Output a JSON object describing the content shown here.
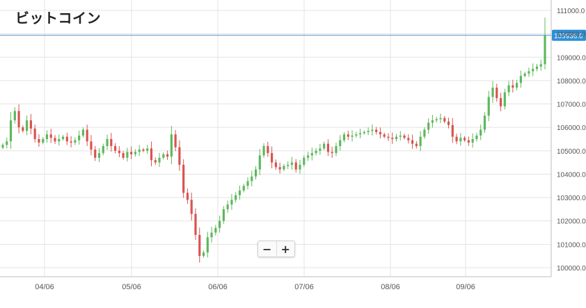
{
  "title": "ビットコイン",
  "zoom": {
    "minus": "−",
    "plus": "+"
  },
  "chart_data": {
    "type": "candlestick",
    "title": "ビットコイン",
    "x_ticks": [
      "04/06",
      "05/06",
      "06/06",
      "07/06",
      "08/06",
      "09/06"
    ],
    "y_ticks": [
      "100000.0",
      "101000.0",
      "102000.0",
      "103000.0",
      "104000.0",
      "105000.0",
      "106000.0",
      "107000.0",
      "108000.0",
      "109000.0",
      "110000.0",
      "111000.0"
    ],
    "ylim": [
      99600,
      111200
    ],
    "current_price_label": "109936.0",
    "current_price": 109936,
    "grid": true,
    "colors": {
      "up": "#5cb85c",
      "down": "#d9534f",
      "price_line": "#4a90c8",
      "price_tag": "#2d8fd6",
      "grid": "#e3e3e3"
    },
    "closes": [
      105250,
      105400,
      106300,
      106700,
      106000,
      105850,
      106300,
      105950,
      105500,
      105350,
      105500,
      105700,
      105550,
      105400,
      105500,
      105600,
      105400,
      105350,
      105450,
      105650,
      105900,
      105400,
      105050,
      104700,
      104900,
      105200,
      105500,
      105200,
      105000,
      104900,
      104700,
      104950,
      104850,
      104950,
      105050,
      105000,
      105100,
      104600,
      104500,
      104700,
      104850,
      104750,
      105700,
      105150,
      104400,
      103200,
      102900,
      102300,
      101400,
      100500,
      100650,
      101300,
      101500,
      101700,
      102000,
      102500,
      102700,
      102900,
      103100,
      103300,
      103500,
      103700,
      103900,
      104200,
      104800,
      105200,
      104900,
      104500,
      104300,
      104200,
      104350,
      104400,
      104500,
      104200,
      104400,
      104700,
      104800,
      104900,
      105000,
      105100,
      105300,
      104950,
      104900,
      105200,
      105450,
      105700,
      105600,
      105650,
      105700,
      105750,
      105800,
      105850,
      105900,
      105800,
      105700,
      105600,
      105550,
      105500,
      105600,
      105650,
      105550,
      105450,
      105300,
      105200,
      105600,
      105900,
      106200,
      106300,
      106350,
      106400,
      106250,
      106100,
      105600,
      105400,
      105550,
      105450,
      105350,
      105500,
      105650,
      105900,
      106500,
      107300,
      107700,
      107250,
      106900,
      107500,
      107800,
      107700,
      107900,
      108200,
      108300,
      108400,
      108500,
      108600,
      108700,
      109936
    ]
  }
}
